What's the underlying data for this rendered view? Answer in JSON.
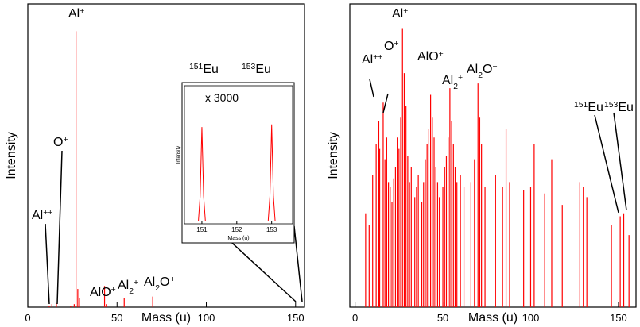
{
  "chart_data": [
    {
      "type": "spectrum",
      "x_label": "Mass (u)",
      "y_label": "Intensity",
      "color": "#ff0000",
      "x": [
        12,
        13.5,
        16,
        24,
        26,
        27,
        28,
        29,
        43,
        44,
        54,
        70
      ],
      "values": [
        0.003,
        0.01,
        0.012,
        0.004,
        0.01,
        0.91,
        0.06,
        0.03,
        0.07,
        0.01,
        0.03,
        0.035
      ],
      "xlim": [
        0,
        155
      ],
      "ylim": [
        0,
        1
      ],
      "xticks": [
        0,
        50,
        100,
        150
      ],
      "log_y": false,
      "annotations": [
        {
          "parts": [
            {
              "t": "Al"
            },
            {
              "t": "++",
              "pos": "sup"
            }
          ]
        },
        {
          "parts": [
            {
              "t": "O"
            },
            {
              "t": "+",
              "pos": "sup"
            }
          ]
        },
        {
          "parts": [
            {
              "t": "Al"
            },
            {
              "t": "+",
              "pos": "sup"
            }
          ]
        },
        {
          "parts": [
            {
              "t": "AlO"
            },
            {
              "t": "+",
              "pos": "sup"
            }
          ]
        },
        {
          "parts": [
            {
              "t": "Al"
            },
            {
              "t": "2",
              "pos": "sub"
            },
            {
              "t": "+",
              "pos": "sup"
            }
          ]
        },
        {
          "parts": [
            {
              "t": "Al"
            },
            {
              "t": "2",
              "pos": "sub"
            },
            {
              "t": "O"
            },
            {
              "t": "+",
              "pos": "sup"
            }
          ]
        },
        {
          "parts": [
            {
              "t": "151",
              "pos": "sup"
            },
            {
              "t": "Eu"
            }
          ]
        },
        {
          "parts": [
            {
              "t": "153",
              "pos": "sup"
            },
            {
              "t": "Eu"
            }
          ]
        }
      ]
    },
    {
      "type": "spectrum",
      "x_label": "Mass (u)",
      "y_label": "Intensity",
      "color": "#ff0000",
      "x": [
        6,
        8,
        10,
        12,
        13.5,
        14,
        16,
        17,
        18,
        19,
        20,
        21,
        22,
        23,
        24,
        25,
        26,
        27,
        28,
        29,
        30,
        31,
        32,
        34,
        35,
        36,
        38,
        39,
        40,
        41,
        42,
        43,
        44,
        45,
        46,
        47,
        48,
        50,
        51,
        52,
        53,
        54,
        55,
        56,
        57,
        58,
        60,
        62,
        66,
        68,
        70,
        71,
        72,
        74,
        80,
        84,
        86,
        88,
        96,
        100,
        102,
        108,
        112,
        118,
        128,
        130,
        132,
        146,
        151,
        153,
        156
      ],
      "values": [
        300,
        150,
        3000,
        20000,
        80000,
        15000,
        250000,
        8000,
        30000,
        2000,
        1500,
        600,
        2500,
        5000,
        30000,
        15000,
        100000,
        23000000,
        1500000,
        200000,
        10000,
        2000,
        5000,
        800,
        1500,
        3000,
        600,
        2000,
        8000,
        20000,
        50000,
        400000,
        100000,
        30000,
        5000,
        2000,
        800,
        1500,
        5000,
        10000,
        30000,
        600000,
        80000,
        20000,
        5000,
        2000,
        3000,
        1500,
        2000,
        8000,
        800000,
        100000,
        20000,
        1500,
        3000,
        1500,
        50000,
        2000,
        1200,
        1500,
        20000,
        1000,
        8000,
        500,
        2000,
        1500,
        800,
        150,
        250,
        300,
        80
      ],
      "xlim": [
        -3,
        160
      ],
      "ylim": [
        1,
        100000000
      ],
      "xticks": [
        0,
        50,
        100,
        150
      ],
      "log_y": true,
      "annotations": [
        {
          "parts": [
            {
              "t": "Al"
            },
            {
              "t": "+",
              "pos": "sup"
            }
          ]
        },
        {
          "parts": [
            {
              "t": "Al"
            },
            {
              "t": "++",
              "pos": "sup"
            }
          ]
        },
        {
          "parts": [
            {
              "t": "O"
            },
            {
              "t": "+",
              "pos": "sup"
            }
          ]
        },
        {
          "parts": [
            {
              "t": "AlO"
            },
            {
              "t": "+",
              "pos": "sup"
            }
          ]
        },
        {
          "parts": [
            {
              "t": "Al"
            },
            {
              "t": "2",
              "pos": "sub"
            },
            {
              "t": "+",
              "pos": "sup"
            }
          ]
        },
        {
          "parts": [
            {
              "t": "Al"
            },
            {
              "t": "2",
              "pos": "sub"
            },
            {
              "t": "O"
            },
            {
              "t": "+",
              "pos": "sup"
            }
          ]
        },
        {
          "parts": [
            {
              "t": "151",
              "pos": "sup"
            },
            {
              "t": "Eu"
            }
          ]
        },
        {
          "parts": [
            {
              "t": "153",
              "pos": "sup"
            },
            {
              "t": "Eu"
            }
          ]
        }
      ]
    },
    {
      "type": "line",
      "x_label": "Mass (u)",
      "y_label": "Intensity",
      "color": "#ff0000",
      "x": [
        150.5,
        150.9,
        150.95,
        151,
        151.05,
        151.1,
        152.9,
        152.95,
        153,
        153.05,
        153.1,
        153.6
      ],
      "values": [
        0.02,
        0.02,
        0.2,
        0.7,
        0.2,
        0.02,
        0.02,
        0.2,
        0.72,
        0.2,
        0.02,
        0.02
      ],
      "xlim": [
        150.5,
        153.6
      ],
      "ylim": [
        0,
        1
      ],
      "xticks": [
        151,
        152,
        153
      ],
      "log_y": false,
      "annotations": [
        {
          "parts": [
            {
              "t": "x 3000"
            }
          ]
        }
      ]
    }
  ]
}
